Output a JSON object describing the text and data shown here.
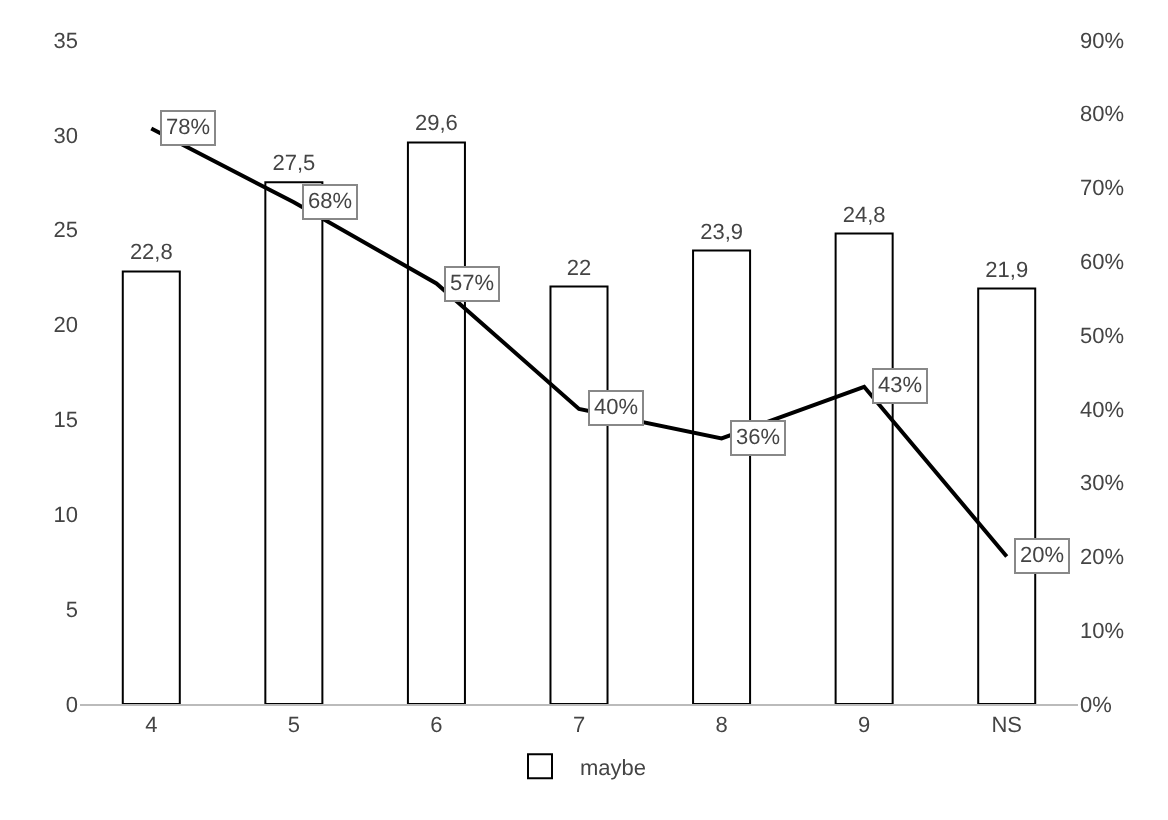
{
  "chart_data": {
    "type": "bar",
    "categories": [
      "4",
      "5",
      "6",
      "7",
      "8",
      "9",
      "NS"
    ],
    "series": [
      {
        "name": "maybe",
        "color": "#ffffff",
        "values": [
          22.8,
          27.5,
          29.6,
          22,
          23.9,
          24.8,
          21.9
        ],
        "value_labels": [
          "22,8",
          "27,5",
          "29,6",
          "22",
          "23,9",
          "24,8",
          "21,9"
        ]
      },
      {
        "type": "line",
        "axis": "y2",
        "color": "#000000",
        "values": [
          78,
          68,
          57,
          40,
          36,
          43,
          20
        ],
        "value_labels": [
          "78%",
          "68%",
          "57%",
          "40%",
          "36%",
          "43%",
          "20%"
        ]
      }
    ],
    "ylim": [
      0,
      35
    ],
    "yticks": [
      0,
      5,
      10,
      15,
      20,
      25,
      30,
      35
    ],
    "y2lim": [
      0,
      90
    ],
    "y2ticks": [
      {
        "value": 0,
        "label": "0%"
      },
      {
        "value": 10,
        "label": "10%"
      },
      {
        "value": 20,
        "label": "20%"
      },
      {
        "value": 30,
        "label": "30%"
      },
      {
        "value": 40,
        "label": "40%"
      },
      {
        "value": 50,
        "label": "50%"
      },
      {
        "value": 60,
        "label": "60%"
      },
      {
        "value": 70,
        "label": "70%"
      },
      {
        "value": 80,
        "label": "80%"
      },
      {
        "value": 90,
        "label": "90%"
      }
    ],
    "grid": false,
    "legend": "bottom",
    "marker": "none",
    "line_style": "solid"
  }
}
